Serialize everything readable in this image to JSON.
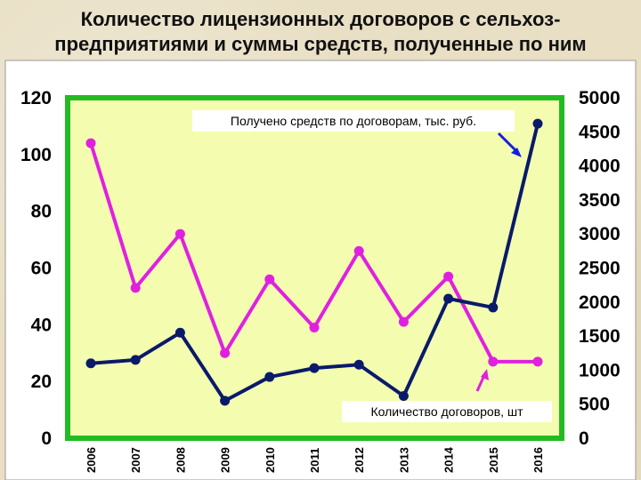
{
  "title_line1": "Количество лицензионных договоров с сельхоз-",
  "title_line2": "предприятиями и суммы средств, полученные по ним",
  "chart_data": {
    "type": "line",
    "x": [
      "2006",
      "2007",
      "2008",
      "2009",
      "2010",
      "2011",
      "2012",
      "2013",
      "2014",
      "2015",
      "2016"
    ],
    "left_axis": {
      "range": [
        0,
        120
      ],
      "ticks": [
        "0",
        "20",
        "40",
        "60",
        "80",
        "100",
        "120"
      ]
    },
    "right_axis": {
      "range": [
        0,
        5000
      ],
      "ticks": [
        "0",
        "500",
        "1000",
        "1500",
        "2000",
        "2500",
        "3000",
        "3500",
        "4000",
        "4500",
        "5000"
      ]
    },
    "series": [
      {
        "name": "Количество договоров, шт",
        "axis": "left",
        "color": "#e020e0",
        "values": [
          104,
          53,
          72,
          30,
          56,
          39,
          66,
          41,
          57,
          27,
          27
        ]
      },
      {
        "name": "Получено средств по договорам, тыс. руб.",
        "axis": "right",
        "color": "#0a1a6a",
        "values": [
          1100,
          1150,
          1550,
          550,
          900,
          1030,
          1080,
          620,
          2050,
          1920,
          4620
        ]
      }
    ],
    "grid": false,
    "plot_background": "#f4fcb0",
    "frame_color": "#22bb22"
  }
}
